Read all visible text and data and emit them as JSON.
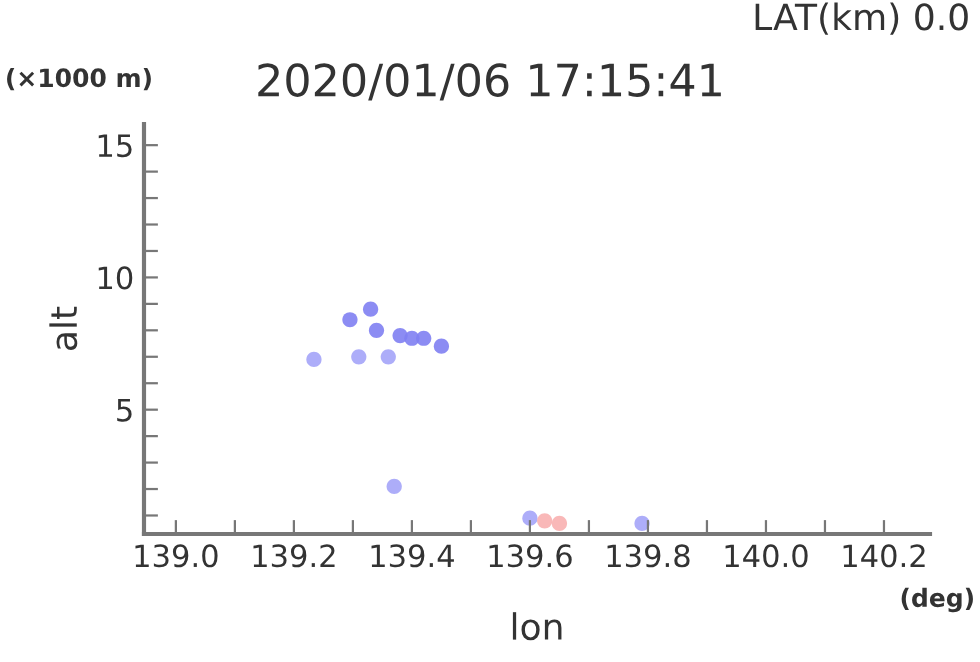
{
  "chart_data": {
    "type": "scatter",
    "title": "2020/01/06 17:15:41",
    "xlabel": "lon",
    "ylabel": "alt",
    "annotations": [
      "LAT(km) 0.0",
      "(×1000 m)",
      "(deg)"
    ],
    "series": [
      {
        "color": "#7f7ff2",
        "x": [
          139.295,
          139.33,
          139.34,
          139.38,
          139.4,
          139.42,
          139.45
        ],
        "values": [
          8.4,
          8.8,
          8.0,
          7.8,
          7.7,
          7.7,
          7.4
        ]
      },
      {
        "color": "#a4a4f8",
        "x": [
          139.234,
          139.31,
          139.36,
          139.37,
          139.6,
          139.79
        ],
        "values": [
          6.9,
          7.0,
          7.0,
          2.1,
          0.9,
          0.7
        ]
      },
      {
        "color": "#f8b0b0",
        "x": [
          139.625,
          139.65
        ],
        "values": [
          0.8,
          0.7
        ]
      }
    ],
    "marker": "circle",
    "grid": false,
    "xlim": [
      138.946,
      140.278
    ],
    "ylim": [
      0.3,
      15.8
    ],
    "xticks": [
      {
        "value": 139.0,
        "label": "139.0"
      },
      {
        "value": 139.1,
        "label": null
      },
      {
        "value": 139.2,
        "label": "139.2"
      },
      {
        "value": 139.3,
        "label": null
      },
      {
        "value": 139.4,
        "label": "139.4"
      },
      {
        "value": 139.5,
        "label": null
      },
      {
        "value": 139.6,
        "label": "139.6"
      },
      {
        "value": 139.7,
        "label": null
      },
      {
        "value": 139.8,
        "label": "139.8"
      },
      {
        "value": 139.9,
        "label": null
      },
      {
        "value": 140.0,
        "label": "140.0"
      },
      {
        "value": 140.1,
        "label": null
      },
      {
        "value": 140.2,
        "label": "140.2"
      }
    ],
    "yticks": [
      {
        "value": 1,
        "label": null
      },
      {
        "value": 2,
        "label": null
      },
      {
        "value": 3,
        "label": null
      },
      {
        "value": 4,
        "label": null
      },
      5,
      {
        "value": 6,
        "label": null
      },
      {
        "value": 7,
        "label": null
      },
      {
        "value": 8,
        "label": null
      },
      {
        "value": 9,
        "label": null
      },
      10,
      {
        "value": 11,
        "label": null
      },
      {
        "value": 12,
        "label": null
      },
      {
        "value": 13,
        "label": null
      },
      {
        "value": 14,
        "label": null
      },
      15
    ]
  }
}
